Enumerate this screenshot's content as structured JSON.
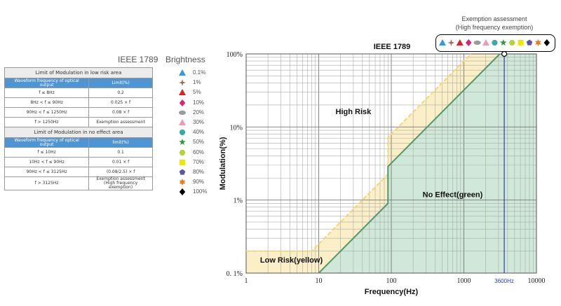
{
  "table": {
    "title": "IEEE 1789",
    "low_risk_header": "Limit of Modulation in low risk area",
    "no_effect_header": "Limit of Modulation in no effect area",
    "col_freq": "Waveform frequency of optical output",
    "col_limit_low": "Limit(%)",
    "col_limit_no": "limit(%)",
    "low_risk_rows": [
      {
        "freq": "f ≤ 8Hz",
        "limit": "0.2"
      },
      {
        "freq": "8Hz < f ≤ 90Hz",
        "limit": "0.025 × f"
      },
      {
        "freq": "90Hz < f ≤ 1250Hz",
        "limit": "0.08 × f"
      },
      {
        "freq": "f > 1250Hz",
        "limit": "Exemption assessment"
      }
    ],
    "no_effect_rows": [
      {
        "freq": "f ≤ 10Hz",
        "limit": "0.1"
      },
      {
        "freq": "10Hz < f ≤ 90Hz",
        "limit": "0.01 × f"
      },
      {
        "freq": "90Hz < f ≤ 3125Hz",
        "limit": "(0.08/2.5) × f"
      },
      {
        "freq": "f > 3125Hz",
        "limit": "Exemption assessment",
        "limit2": "(High frequency exemption)"
      }
    ]
  },
  "brightness": {
    "title": "Brightness",
    "levels": [
      {
        "label": "0.1%",
        "shape": "triangle-icon",
        "color": "#2f9be0"
      },
      {
        "label": "1%",
        "shape": "four-point-star-icon",
        "color": "#9b6a4e"
      },
      {
        "label": "5%",
        "shape": "triangle-icon",
        "color": "#e0202a"
      },
      {
        "label": "10%",
        "shape": "diamond-icon",
        "color": "#e0207c"
      },
      {
        "label": "20%",
        "shape": "ellipse-icon",
        "color": "#9a9a9a"
      },
      {
        "label": "30%",
        "shape": "triangle-icon",
        "color": "#f09ab8"
      },
      {
        "label": "40%",
        "shape": "circle-icon",
        "color": "#3aa9a9"
      },
      {
        "label": "50%",
        "shape": "star-icon",
        "color": "#2e9a3c"
      },
      {
        "label": "60%",
        "shape": "hexagon-icon",
        "color": "#b5d335"
      },
      {
        "label": "70%",
        "shape": "square-icon",
        "color": "#f2e600"
      },
      {
        "label": "80%",
        "shape": "pentagon-icon",
        "color": "#5a55a8"
      },
      {
        "label": "90%",
        "shape": "six-point-star-icon",
        "color": "#f07a1a"
      },
      {
        "label": "100%",
        "shape": "diamond-icon",
        "color": "#000000"
      }
    ]
  },
  "exemption": {
    "caption_line1": "Exemption assessment",
    "caption_line2": "(High frequency exemption)"
  },
  "chart_data": {
    "type": "area",
    "title": "IEEE 1789",
    "xlabel": "Frequency(Hz)",
    "ylabel": "Modulation(%)",
    "x_scale": "log",
    "y_scale": "log",
    "xlim": [
      1,
      10000
    ],
    "ylim": [
      0.1,
      100
    ],
    "x_ticks": [
      "1",
      "10",
      "100",
      "1000",
      "10000"
    ],
    "y_ticks": [
      "0. 1%",
      "1%",
      "10%",
      "100%"
    ],
    "grid": true,
    "series": [
      {
        "color": "#f5d76e",
        "fill": "#fbefc7",
        "x": [
          1,
          8,
          90,
          90,
          1250
        ],
        "y": [
          0.2,
          0.2,
          2.25,
          7.2,
          100
        ]
      },
      {
        "color": "#4f9a6a",
        "fill": "#cfe8d9",
        "x": [
          10,
          90,
          90,
          3125
        ],
        "y": [
          0.1,
          0.9,
          2.88,
          100
        ]
      }
    ],
    "annotations": [
      {
        "text": "High Risk",
        "x": 30,
        "y": 15
      },
      {
        "text": "No Effect(green)",
        "x": 700,
        "y": 1.1
      },
      {
        "text": "Low Risk(yellow)",
        "x": 4.2,
        "y": 0.14
      }
    ],
    "vline": {
      "x": 3600,
      "label": "3600Hz",
      "color": "#2a3f9e"
    }
  }
}
